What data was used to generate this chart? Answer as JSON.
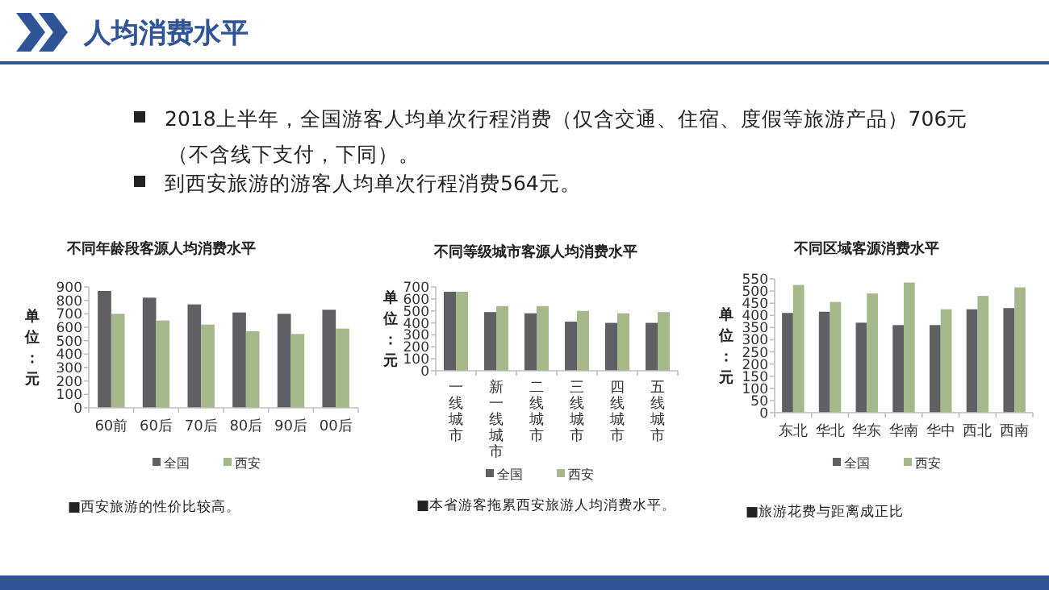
{
  "chart_data": [
    {
      "type": "other",
      "title": "人均消费水平",
      "annotations": [
        "2018上半年，全国游客人均单次行程消费（仅含交通、住宿、度假等旅游产品）706元（不含线下支付，下同）。",
        "到西安旅游的游客人均单次行程消费564元。"
      ]
    },
    {
      "type": "bar",
      "title": "不同年龄段客源人均消费水平",
      "ylabel": "单位：元",
      "categories": [
        "60前",
        "60后",
        "70后",
        "80后",
        "90后",
        "00后"
      ],
      "ylim": [
        0,
        900
      ],
      "yticks": [
        0,
        100,
        200,
        300,
        400,
        500,
        600,
        700,
        800,
        900
      ],
      "legend": "bottom",
      "grid": false,
      "series": [
        {
          "name": "全国",
          "color": "#5f5f64",
          "values": [
            870,
            820,
            770,
            710,
            700,
            730
          ]
        },
        {
          "name": "西安",
          "color": "#a4b88a",
          "values": [
            700,
            650,
            620,
            570,
            550,
            590
          ]
        }
      ],
      "annotations": [
        "■西安旅游的性价比较高。"
      ]
    },
    {
      "type": "bar",
      "title": "不同等级城市客源人均消费水平",
      "ylabel": "单位：元",
      "categories": [
        "一线城市",
        "新一线城市",
        "二线城市",
        "三线城市",
        "四线城市",
        "五线城市"
      ],
      "ylim": [
        0,
        700
      ],
      "yticks": [
        0,
        100,
        200,
        300,
        400,
        500,
        600,
        700
      ],
      "legend": "bottom",
      "grid": false,
      "series": [
        {
          "name": "全国",
          "color": "#5f5f64",
          "values": [
            660,
            490,
            480,
            410,
            400,
            400
          ]
        },
        {
          "name": "西安",
          "color": "#a4b88a",
          "values": [
            660,
            540,
            540,
            500,
            480,
            490
          ]
        }
      ],
      "annotations": [
        "■本省游客拖累西安旅游人均消费水平。"
      ]
    },
    {
      "type": "bar",
      "title": "不同区域客源消费水平",
      "ylabel": "单位：元",
      "categories": [
        "东北",
        "华北",
        "华东",
        "华南",
        "华中",
        "西北",
        "西南"
      ],
      "ylim": [
        0,
        550
      ],
      "yticks": [
        0,
        50,
        100,
        150,
        200,
        250,
        300,
        350,
        400,
        450,
        500,
        550
      ],
      "legend": "bottom",
      "grid": false,
      "series": [
        {
          "name": "全国",
          "color": "#5f5f64",
          "values": [
            410,
            415,
            370,
            360,
            360,
            425,
            430
          ]
        },
        {
          "name": "西安",
          "color": "#a4b88a",
          "values": [
            525,
            455,
            490,
            535,
            425,
            480,
            515
          ]
        }
      ],
      "annotations": [
        "■旅游花费与距离成正比"
      ]
    }
  ]
}
